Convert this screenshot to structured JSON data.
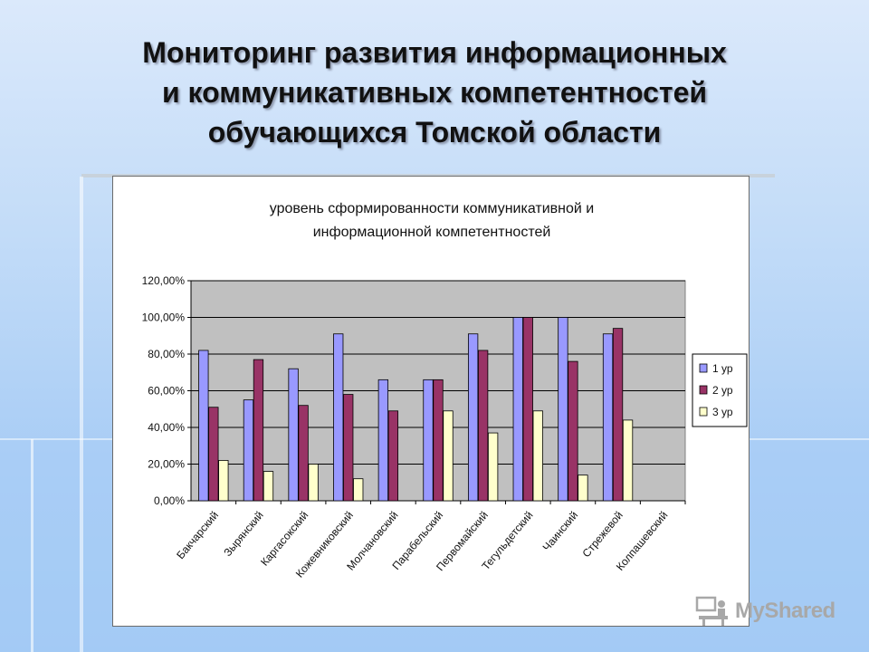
{
  "slide": {
    "title_lines": [
      "Мониторинг развития информационных",
      "и коммуникативных компетентностей",
      "обучающихся Томской области"
    ]
  },
  "chart_data": {
    "type": "bar",
    "title_lines": [
      "уровень сформированности коммуникативной и",
      "информационной компетентностей"
    ],
    "categories": [
      "Бакчарский",
      "Зырянский",
      "Каргасокский",
      "Кожевниковский",
      "Молчановский",
      "Парабельский",
      "Первомайский",
      "Тегульдетский",
      "Чаинский",
      "Стрежевой",
      "Колпашевский"
    ],
    "series": [
      {
        "name": "1 ур",
        "color": "#9999ff",
        "values": [
          82,
          55,
          72,
          91,
          66,
          66,
          91,
          100,
          100,
          91,
          0
        ]
      },
      {
        "name": "2 ур",
        "color": "#993366",
        "values": [
          51,
          77,
          52,
          58,
          49,
          66,
          82,
          100,
          76,
          94,
          0
        ]
      },
      {
        "name": "3 ур",
        "color": "#ffffcc",
        "values": [
          22,
          16,
          20,
          12,
          0,
          49,
          37,
          49,
          14,
          44,
          0
        ]
      }
    ],
    "y_ticks": [
      "0,00%",
      "20,00%",
      "40,00%",
      "60,00%",
      "80,00%",
      "100,00%",
      "120,00%"
    ],
    "ylim": [
      0,
      120
    ],
    "grid": true,
    "plot_background": "#c0c0c0",
    "legend_position": "right"
  },
  "watermark": {
    "text": "MyShared",
    "icon": "teacher-at-desk-icon"
  }
}
